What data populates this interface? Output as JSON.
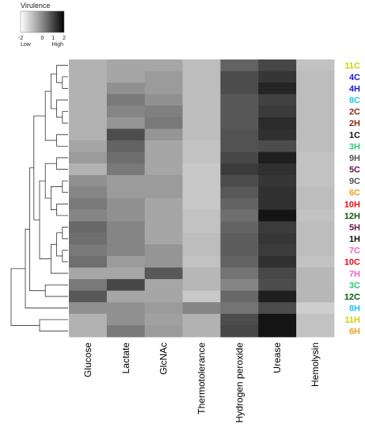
{
  "chart_data": {
    "type": "heatmap",
    "legend": {
      "title": "Virulence",
      "ticks": [
        "-2",
        "0",
        "1",
        "2"
      ],
      "low_label": "Low",
      "high_label": "High",
      "range": [
        -2,
        2
      ]
    },
    "columns": [
      "Glucose",
      "Lactate",
      "GlcNAc",
      "Thermotolerance",
      "Hydrogen peroxide",
      "Urease",
      "Hemolysin"
    ],
    "rows": [
      {
        "label": "11C",
        "color": "#c8d400"
      },
      {
        "label": "4C",
        "color": "#1a1adf"
      },
      {
        "label": "4H",
        "color": "#1a1adf"
      },
      {
        "label": "8C",
        "color": "#22c4e8"
      },
      {
        "label": "2C",
        "color": "#8b2a12"
      },
      {
        "label": "2H",
        "color": "#8b2a12"
      },
      {
        "label": "1C",
        "color": "#111111"
      },
      {
        "label": "3H",
        "color": "#2ec97a"
      },
      {
        "label": "9H",
        "color": "#555555"
      },
      {
        "label": "5C",
        "color": "#6a1850"
      },
      {
        "label": "9C",
        "color": "#555555"
      },
      {
        "label": "6C",
        "color": "#f0a020"
      },
      {
        "label": "10H",
        "color": "#e8101c"
      },
      {
        "label": "12H",
        "color": "#0f5a1a"
      },
      {
        "label": "5H",
        "color": "#6a1850"
      },
      {
        "label": "1H",
        "color": "#111111"
      },
      {
        "label": "7C",
        "color": "#f060d0"
      },
      {
        "label": "10C",
        "color": "#e8101c"
      },
      {
        "label": "7H",
        "color": "#f060d0"
      },
      {
        "label": "3C",
        "color": "#2ec97a"
      },
      {
        "label": "12C",
        "color": "#0f5a1a"
      },
      {
        "label": "8H",
        "color": "#22c4e8"
      },
      {
        "label": "11H",
        "color": "#c8d400"
      },
      {
        "label": "6H",
        "color": "#f0a020"
      }
    ],
    "values": [
      [
        -0.8,
        -0.6,
        -0.6,
        -1.0,
        0.6,
        1.1,
        -1.1
      ],
      [
        -0.8,
        -0.6,
        -0.4,
        -1.0,
        1.0,
        1.4,
        -1.0
      ],
      [
        -0.8,
        -0.2,
        -0.4,
        -1.0,
        1.0,
        1.7,
        -1.0
      ],
      [
        -0.8,
        0.2,
        -0.2,
        -1.0,
        0.8,
        1.2,
        -1.0
      ],
      [
        -0.8,
        0.0,
        0.1,
        -1.0,
        0.8,
        1.3,
        -1.0
      ],
      [
        -0.8,
        -0.3,
        0.2,
        -1.0,
        0.8,
        1.6,
        -1.0
      ],
      [
        -0.8,
        1.0,
        -0.3,
        -1.0,
        0.9,
        1.5,
        -1.0
      ],
      [
        -0.6,
        0.6,
        -0.6,
        -1.1,
        0.9,
        1.0,
        -1.0
      ],
      [
        -0.4,
        0.4,
        -0.6,
        -1.1,
        1.1,
        1.8,
        -1.1
      ],
      [
        -0.8,
        0.2,
        -0.6,
        -1.2,
        1.3,
        1.5,
        -1.1
      ],
      [
        -0.2,
        -0.4,
        -0.4,
        -1.2,
        1.0,
        1.4,
        -1.1
      ],
      [
        0.0,
        -0.4,
        -0.4,
        -1.2,
        0.8,
        1.5,
        -1.0
      ],
      [
        0.2,
        -0.2,
        -0.6,
        -1.2,
        0.6,
        1.5,
        -1.0
      ],
      [
        0.0,
        -0.2,
        -0.6,
        -1.1,
        0.4,
        2.0,
        -1.1
      ],
      [
        0.5,
        0.0,
        -0.6,
        -1.1,
        0.6,
        1.3,
        -1.0
      ],
      [
        0.4,
        0.0,
        -0.6,
        -1.0,
        0.7,
        1.4,
        -1.0
      ],
      [
        0.2,
        0.0,
        -0.3,
        -1.0,
        0.7,
        1.3,
        -1.0
      ],
      [
        0.4,
        -0.4,
        -0.3,
        -1.1,
        0.6,
        1.5,
        -1.1
      ],
      [
        -0.6,
        -0.6,
        0.8,
        -0.9,
        0.3,
        1.1,
        -0.9
      ],
      [
        0.2,
        1.1,
        -0.6,
        -0.9,
        0.0,
        1.0,
        -0.9
      ],
      [
        0.8,
        -0.6,
        -0.6,
        -1.2,
        0.5,
        1.8,
        -0.9
      ],
      [
        -0.2,
        -0.2,
        -0.4,
        0.0,
        0.3,
        1.0,
        -1.3
      ],
      [
        -0.8,
        -0.2,
        -0.5,
        -0.8,
        1.0,
        2.0,
        -1.1
      ],
      [
        -0.8,
        0.2,
        -0.4,
        -0.8,
        1.1,
        2.0,
        -1.1
      ]
    ]
  }
}
